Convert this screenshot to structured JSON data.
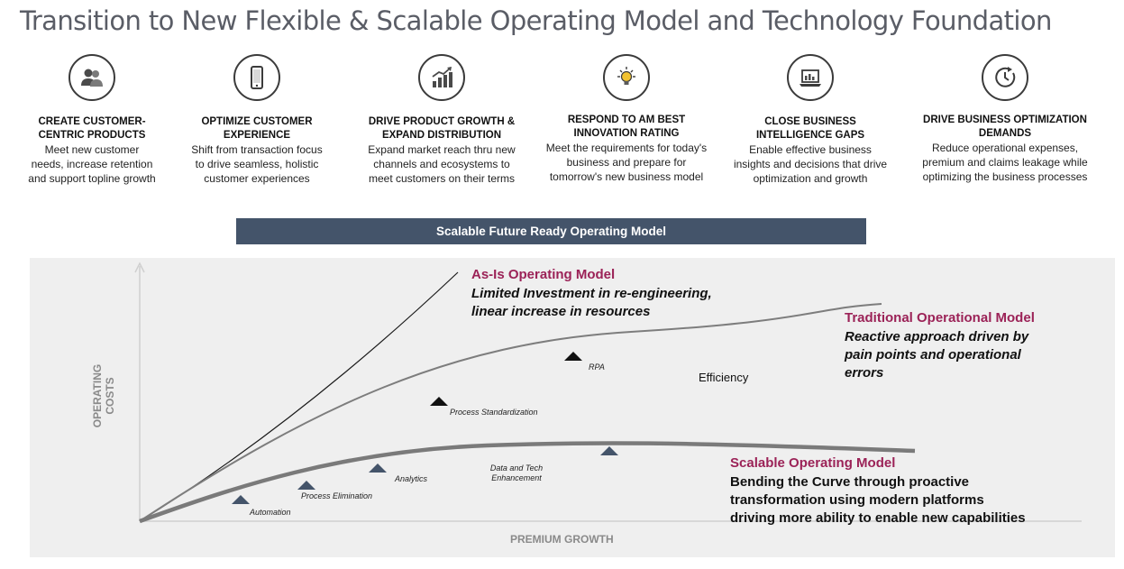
{
  "title": "Transition to New Flexible & Scalable Operating Model and Technology Foundation",
  "pillars": [
    {
      "icon": "users-icon",
      "title_lines": [
        "CREATE CUSTOMER-",
        "CENTRIC PRODUCTS"
      ],
      "desc_lines": [
        "Meet new customer",
        "needs, increase retention",
        "and support topline growth"
      ]
    },
    {
      "icon": "mobile-phone-icon",
      "title_lines": [
        "OPTIMIZE CUSTOMER",
        "EXPERIENCE"
      ],
      "desc_lines": [
        "Shift from transaction focus",
        "to drive seamless, holistic",
        "customer experiences"
      ]
    },
    {
      "icon": "growth-chart-icon",
      "title_lines": [
        "DRIVE PRODUCT GROWTH &",
        "EXPAND DISTRIBUTION"
      ],
      "desc_lines": [
        "Expand market reach thru new",
        "channels and ecosystems to",
        "meet customers on their terms"
      ]
    },
    {
      "icon": "lightbulb-icon",
      "title_lines": [
        "RESPOND TO AM BEST",
        "INNOVATION RATING"
      ],
      "desc_lines": [
        "Meet the requirements for today's",
        "business and prepare for",
        "tomorrow's new business model"
      ]
    },
    {
      "icon": "laptop-chart-icon",
      "title_lines": [
        "CLOSE BUSINESS",
        "INTELLIGENCE GAPS"
      ],
      "desc_lines": [
        "Enable effective business",
        "insights and decisions that drive",
        "optimization and growth"
      ]
    },
    {
      "icon": "clock-cycle-icon",
      "title_lines": [
        "DRIVE BUSINESS OPTIMIZATION",
        "DEMANDS"
      ],
      "desc_lines": [
        "Reduce operational expenses,",
        "premium and claims leakage while",
        "optimizing the business processes"
      ]
    }
  ],
  "banner": "Scalable Future Ready Operating Model",
  "diagram": {
    "y_axis_label_lines": [
      "OPERATING",
      "COSTS"
    ],
    "x_axis_label": "PREMIUM GROWTH",
    "as_is": {
      "heading": "As-Is Operating Model",
      "lines": [
        "Limited Investment in re-engineering,",
        "linear increase in resources"
      ]
    },
    "traditional": {
      "heading": "Traditional Operational Model",
      "lines": [
        "Reactive approach driven by",
        "pain points and operational",
        "errors"
      ]
    },
    "scalable": {
      "heading": "Scalable Operating Model",
      "lines": [
        "Bending the Curve through proactive",
        "transformation using modern platforms",
        "driving more ability to enable new capabilities"
      ]
    },
    "efficiency_label": "Efficiency",
    "traditional_stages": [
      "Process Standardization",
      "RPA"
    ],
    "scalable_stages": [
      "Automation",
      "Process Elimination",
      "Analytics",
      "Data and Tech Enhancement"
    ],
    "colors": {
      "heading": "#9b2257",
      "banner": "#44546a",
      "scalable_marker": "#44546a",
      "traditional_marker": "#111111"
    }
  }
}
